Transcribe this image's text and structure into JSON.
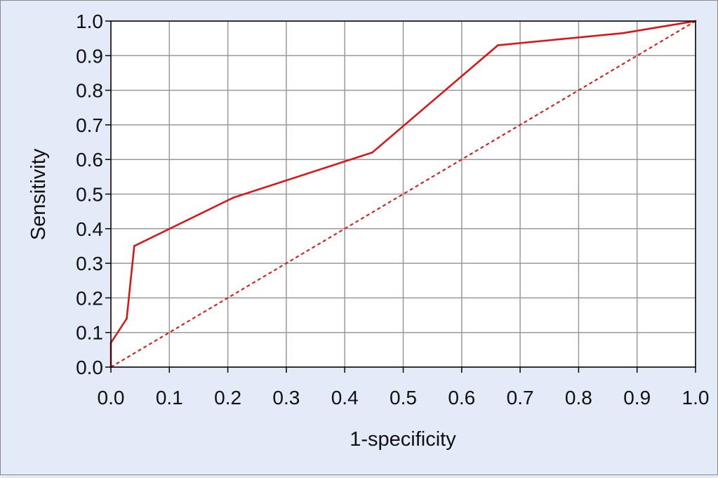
{
  "chart_data": {
    "type": "line",
    "title": "",
    "xlabel": "1-specificity",
    "ylabel": "Sensitivity",
    "xlim": [
      0,
      1
    ],
    "ylim": [
      0,
      1
    ],
    "grid": true,
    "x_ticks": [
      "0.0",
      "0.1",
      "0.2",
      "0.3",
      "0.4",
      "0.5",
      "0.6",
      "0.7",
      "0.8",
      "0.9",
      "1.0"
    ],
    "y_ticks": [
      "0.0",
      "0.1",
      "0.2",
      "0.3",
      "0.4",
      "0.5",
      "0.6",
      "0.7",
      "0.8",
      "0.9",
      "1.0"
    ],
    "series": [
      {
        "style": "solid",
        "color": "#e01010",
        "points": [
          [
            0.0,
            0.0
          ],
          [
            0.0,
            0.07
          ],
          [
            0.027,
            0.14
          ],
          [
            0.04,
            0.35
          ],
          [
            0.21,
            0.49
          ],
          [
            0.447,
            0.62
          ],
          [
            0.662,
            0.93
          ],
          [
            0.875,
            0.965
          ],
          [
            1.0,
            1.0
          ]
        ]
      },
      {
        "style": "dashed",
        "color": "#e01010",
        "points": [
          [
            0.0,
            0.0
          ],
          [
            1.0,
            1.0
          ]
        ]
      }
    ]
  }
}
